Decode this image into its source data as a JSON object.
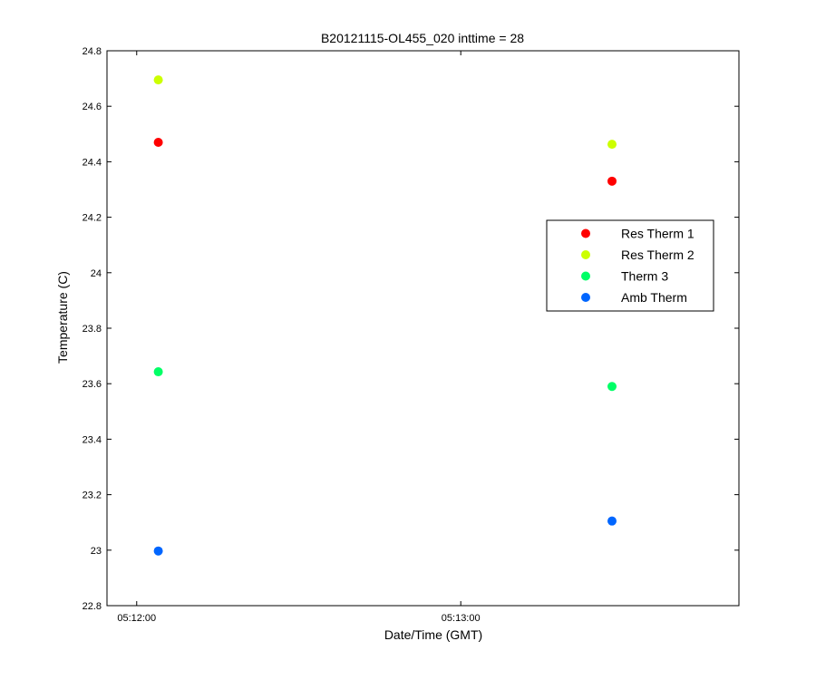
{
  "chart_data": {
    "type": "scatter",
    "title": "B20121115-OL455_020 inttime = 28",
    "xlabel": "Date/Time (GMT)",
    "ylabel": "Temperature (C)",
    "x_ticks": [
      "05:12:00",
      "05:13:00"
    ],
    "x_tick_values": [
      0,
      60
    ],
    "xlim": [
      -5.5,
      111.5
    ],
    "ylim": [
      22.8,
      24.8
    ],
    "y_ticks": [
      22.8,
      23,
      23.2,
      23.4,
      23.6,
      23.8,
      24,
      24.2,
      24.4,
      24.6,
      24.8
    ],
    "y_tick_labels": [
      "22.8",
      "23",
      "23.2",
      "23.4",
      "23.6",
      "23.8",
      "24",
      "24.2",
      "24.4",
      "24.6",
      "24.8"
    ],
    "grid": false,
    "legend_position": "right",
    "series": [
      {
        "name": "Res Therm 1",
        "color": "#ff0000",
        "x": [
          4,
          88
        ],
        "y": [
          24.47,
          24.33
        ]
      },
      {
        "name": "Res Therm 2",
        "color": "#ccff00",
        "x": [
          4,
          88
        ],
        "y": [
          24.695,
          24.463
        ]
      },
      {
        "name": "Therm 3",
        "color": "#00ff66",
        "x": [
          4,
          88
        ],
        "y": [
          23.643,
          23.59
        ]
      },
      {
        "name": "Amb Therm",
        "color": "#0066ff",
        "x": [
          4,
          88
        ],
        "y": [
          22.997,
          23.105
        ]
      }
    ]
  }
}
